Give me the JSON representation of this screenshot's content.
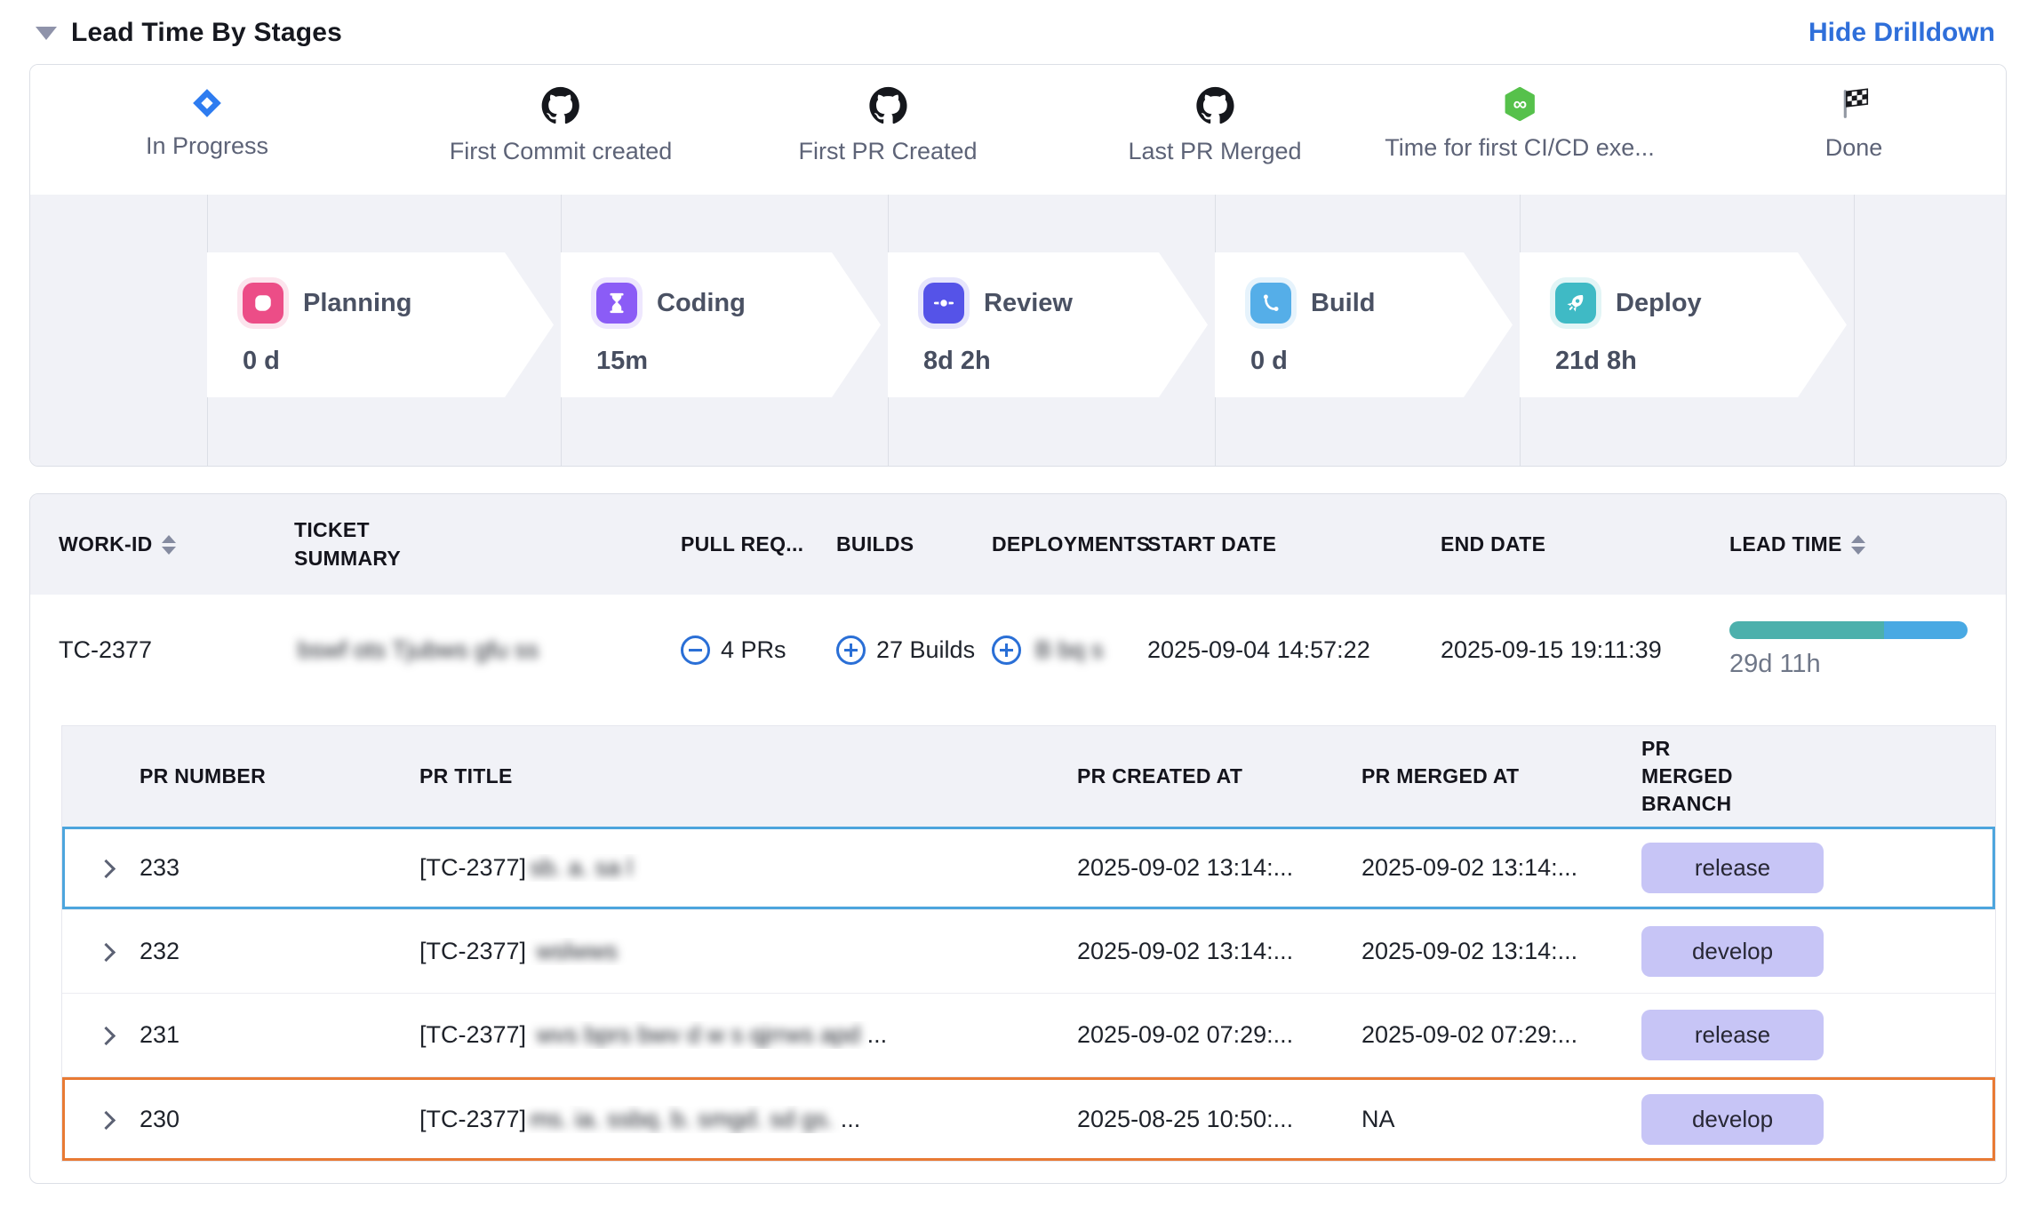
{
  "header": {
    "title": "Lead Time By Stages",
    "action": "Hide Drilldown",
    "action_color": "#2f6fda"
  },
  "milestones": [
    {
      "label": "In Progress",
      "icon": "jira-icon"
    },
    {
      "label": "First Commit created",
      "icon": "github-icon"
    },
    {
      "label": "First PR Created",
      "icon": "github-icon"
    },
    {
      "label": "Last PR Merged",
      "icon": "github-icon"
    },
    {
      "label": "Time for first CI/CD exe...",
      "icon": "cicd-icon"
    },
    {
      "label": "Done",
      "icon": "finish-flag-icon"
    }
  ],
  "stages": [
    {
      "name": "Planning",
      "duration": "0 d",
      "icon": "planning-note-icon",
      "icon_color": "#ec4d87"
    },
    {
      "name": "Coding",
      "duration": "15m",
      "icon": "hourglass-icon",
      "icon_color": "#8b5cf6"
    },
    {
      "name": "Review",
      "duration": "8d 2h",
      "icon": "commit-dot-icon",
      "icon_color": "#5553e8"
    },
    {
      "name": "Build",
      "duration": "0 d",
      "icon": "branch-icon",
      "icon_color": "#55aee8"
    },
    {
      "name": "Deploy",
      "duration": "21d 8h",
      "icon": "rocket-icon",
      "icon_color": "#3fbac5"
    }
  ],
  "work_table": {
    "columns": {
      "work_id": "WORK-ID",
      "ticket_summary": "TICKET SUMMARY",
      "pull_requests": "PULL REQ...",
      "builds": "BUILDS",
      "deployments": "DEPLOYMENTS",
      "start_date": "START DATE",
      "end_date": "END DATE",
      "lead_time": "LEAD TIME"
    },
    "row": {
      "work_id": "TC-2377",
      "ticket_summary_redacted": "bswf ots Tjubws gfu ss",
      "pull_requests": "4 PRs",
      "builds": "27 Builds",
      "deployments_redacted": "B bq s",
      "start_date": "2025-09-04 14:57:22",
      "end_date": "2025-09-15 19:11:39",
      "lead_time": "29d 11h",
      "lead_time_bar": {
        "segments": [
          {
            "color": "#4cb0ac",
            "pct": 65
          },
          {
            "color": "#49a9e3",
            "pct": 35
          }
        ]
      }
    }
  },
  "pr_table": {
    "columns": {
      "number": "PR NUMBER",
      "title": "PR TITLE",
      "created": "PR CREATED AT",
      "merged": "PR MERGED AT",
      "branch": "PR MERGED BRANCH"
    },
    "badge_bg": "#c7c5f6",
    "highlight_colors": {
      "selected_blue": "#4da5dd",
      "flagged_orange": "#e87a34"
    },
    "rows": [
      {
        "number": "233",
        "title_prefix": "[TC-2377]",
        "title_redacted": "sb. a. sa l",
        "title_suffix": "",
        "created": "2025-09-02 13:14:...",
        "merged": "2025-09-02 13:14:...",
        "branch": "release"
      },
      {
        "number": "232",
        "title_prefix": "[TC-2377] ",
        "title_redacted": "wslwws",
        "title_suffix": "",
        "created": "2025-09-02 13:14:...",
        "merged": "2025-09-02 13:14:...",
        "branch": "develop"
      },
      {
        "number": "231",
        "title_prefix": "[TC-2377] ",
        "title_redacted": "wvs bprs bwv d w s qjrrws apd",
        "title_suffix": " ...",
        "created": "2025-09-02 07:29:...",
        "merged": "2025-09-02 07:29:...",
        "branch": "release"
      },
      {
        "number": "230",
        "title_prefix": "[TC-2377]",
        "title_redacted": "ms. ia. ssbq. b. smgd. sd gs.",
        "title_suffix": " ...",
        "created": "2025-08-25 10:50:...",
        "merged": "NA",
        "branch": "develop"
      }
    ]
  }
}
